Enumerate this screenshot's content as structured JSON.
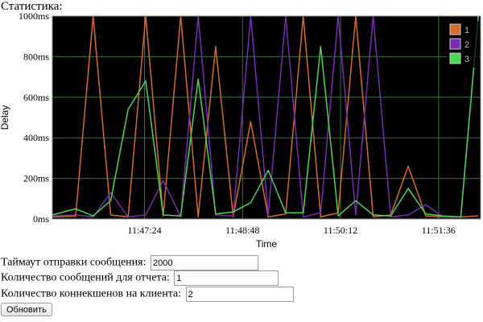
{
  "heading": "Статистика:",
  "form": {
    "timeout_label": "Таймаут отправки сообщения:",
    "timeout_value": "2000",
    "messages_label": "Количество сообщений для отчета:",
    "messages_value": "1",
    "connections_label": "Количество коннекшенов на клиента:",
    "connections_value": "2",
    "refresh_label": "Обновить"
  },
  "chart_data": {
    "type": "line",
    "title": "",
    "xlabel": "Time",
    "ylabel": "Delay",
    "ylim": [
      0,
      1000
    ],
    "y_ticks": [
      "0ms",
      "200ms",
      "400ms",
      "600ms",
      "800ms",
      "1000ms"
    ],
    "x_tick_labels": [
      "11:47:24",
      "11:48:48",
      "11:50:12",
      "11:51:36"
    ],
    "xlim": [
      "11:46:05",
      "11:52:12"
    ],
    "grid": true,
    "legend_position": "top-right",
    "background": "#000000",
    "grid_color": "#2f7a3f",
    "x": [
      "11:46:05",
      "11:46:25",
      "11:46:40",
      "11:46:55",
      "11:47:10",
      "11:47:25",
      "11:47:40",
      "11:47:55",
      "11:48:10",
      "11:48:25",
      "11:48:40",
      "11:48:55",
      "11:49:10",
      "11:49:25",
      "11:49:40",
      "11:49:55",
      "11:50:10",
      "11:50:25",
      "11:50:40",
      "11:50:55",
      "11:51:10",
      "11:51:25",
      "11:51:40",
      "11:51:55",
      "11:52:10"
    ],
    "series": [
      {
        "name": "1",
        "color": "#d86b27",
        "values": [
          10,
          15,
          1000,
          20,
          10,
          1000,
          15,
          1000,
          10,
          850,
          10,
          480,
          10,
          25,
          1000,
          10,
          30,
          1000,
          10,
          20,
          260,
          15,
          10,
          10,
          15
        ]
      },
      {
        "name": "2",
        "color": "#7a2bb5",
        "values": [
          15,
          20,
          10,
          130,
          10,
          20,
          190,
          10,
          1000,
          20,
          15,
          1000,
          20,
          1000,
          10,
          30,
          1000,
          20,
          1000,
          10,
          20,
          70,
          10,
          10,
          1000
        ]
      },
      {
        "name": "3",
        "color": "#49d84f",
        "values": [
          20,
          50,
          15,
          90,
          540,
          680,
          20,
          15,
          690,
          25,
          35,
          80,
          240,
          30,
          30,
          850,
          15,
          90,
          20,
          15,
          150,
          25,
          15,
          10,
          1000
        ]
      }
    ]
  }
}
